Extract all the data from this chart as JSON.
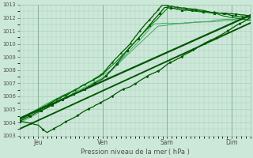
{
  "xlabel": "Pression niveau de la mer ( hPa )",
  "background_color": "#cce8d8",
  "grid_color": "#a8c8b8",
  "text_color": "#505050",
  "ylim": [
    1003,
    1013
  ],
  "yticks": [
    1003,
    1004,
    1005,
    1006,
    1007,
    1008,
    1009,
    1010,
    1011,
    1012,
    1013
  ],
  "xtick_labels": [
    "Jeu",
    "Ven",
    "Sam",
    "Dim"
  ],
  "xtick_positions": [
    0.08,
    0.36,
    0.64,
    0.92
  ],
  "line_color_dark": "#005500",
  "line_color_mid": "#007700",
  "line_color_light": "#44aa66"
}
